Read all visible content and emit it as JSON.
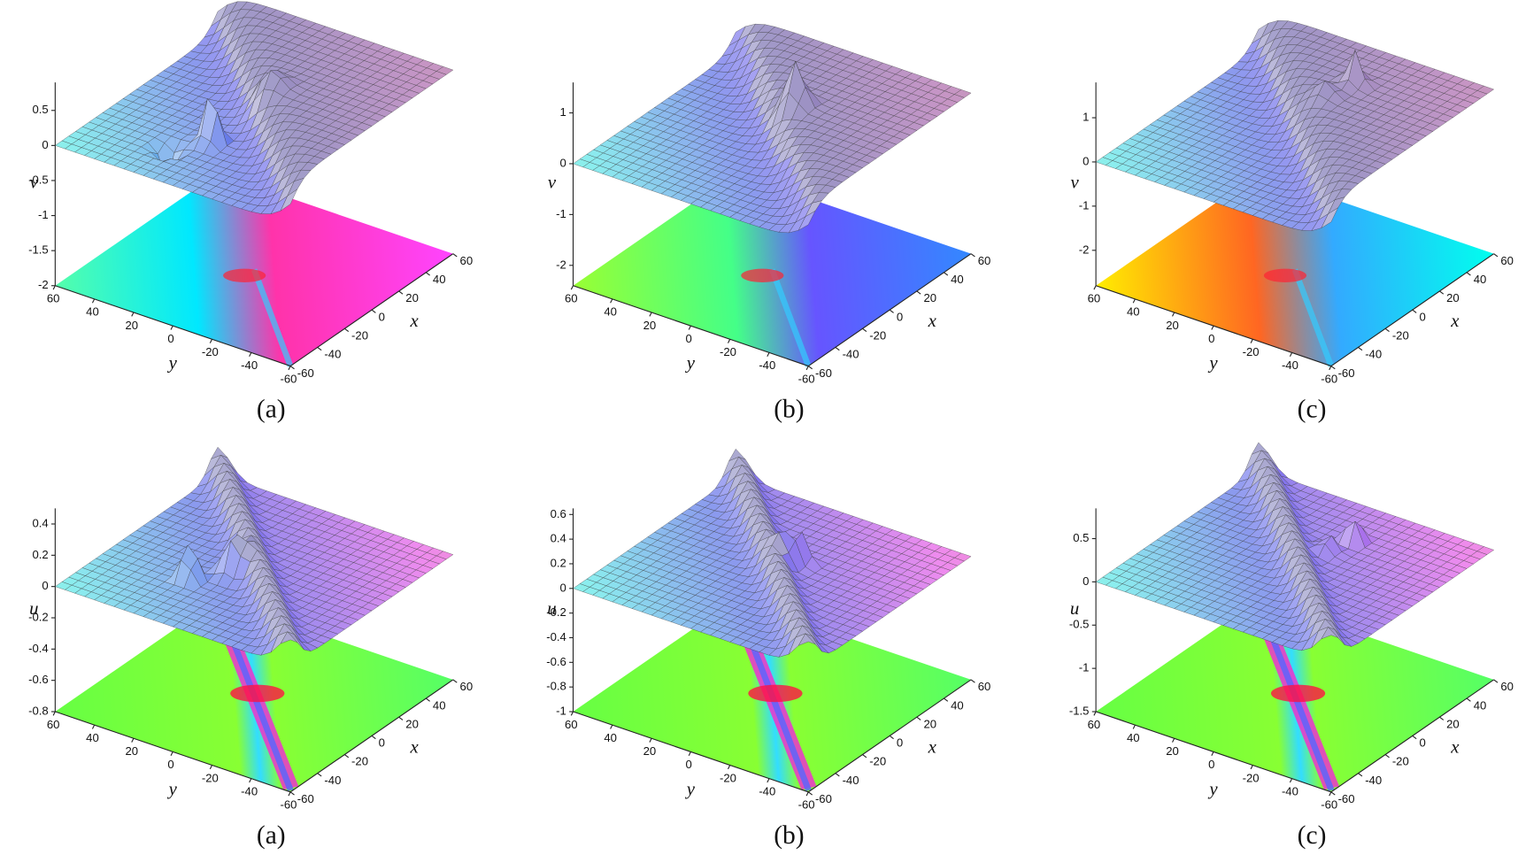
{
  "chart_data": [
    {
      "type": "surface",
      "caption": "(a)",
      "zlabel": "v",
      "xlabel": "x",
      "ylabel": "y",
      "xlim": [
        -60,
        60
      ],
      "ylim": [
        -60,
        60
      ],
      "zlim": [
        -2,
        0.9
      ],
      "xticks": [
        -60,
        -40,
        -20,
        0,
        20,
        40,
        60
      ],
      "yticks": [
        -60,
        -40,
        -20,
        0,
        20,
        40,
        60
      ],
      "zticks": [
        -2,
        -1.5,
        -1,
        -0.5,
        0,
        0.5
      ]
    },
    {
      "type": "surface",
      "caption": "(b)",
      "zlabel": "v",
      "xlabel": "x",
      "ylabel": "y",
      "xlim": [
        -60,
        60
      ],
      "ylim": [
        -60,
        60
      ],
      "zlim": [
        -2.4,
        1.6
      ],
      "xticks": [
        -60,
        -40,
        -20,
        0,
        20,
        40,
        60
      ],
      "yticks": [
        -60,
        -40,
        -20,
        0,
        20,
        40,
        60
      ],
      "zticks": [
        -2,
        -1,
        0,
        1
      ]
    },
    {
      "type": "surface",
      "caption": "(c)",
      "zlabel": "v",
      "xlabel": "x",
      "ylabel": "y",
      "xlim": [
        -60,
        60
      ],
      "ylim": [
        -60,
        60
      ],
      "zlim": [
        -2.8,
        1.8
      ],
      "xticks": [
        -60,
        -40,
        -20,
        0,
        20,
        40,
        60
      ],
      "yticks": [
        -60,
        -40,
        -20,
        0,
        20,
        40,
        60
      ],
      "zticks": [
        -2,
        -1,
        0,
        1
      ]
    },
    {
      "type": "surface",
      "caption": "(a)",
      "zlabel": "u",
      "xlabel": "x",
      "ylabel": "y",
      "xlim": [
        -60,
        60
      ],
      "ylim": [
        -60,
        60
      ],
      "zlim": [
        -0.8,
        0.5
      ],
      "xticks": [
        -60,
        -40,
        -20,
        0,
        20,
        40,
        60
      ],
      "yticks": [
        -60,
        -40,
        -20,
        0,
        20,
        40,
        60
      ],
      "zticks": [
        -0.8,
        -0.6,
        -0.4,
        -0.2,
        0,
        0.2,
        0.4
      ]
    },
    {
      "type": "surface",
      "caption": "(b)",
      "zlabel": "u",
      "xlabel": "x",
      "ylabel": "y",
      "xlim": [
        -60,
        60
      ],
      "ylim": [
        -60,
        60
      ],
      "zlim": [
        -1,
        0.65
      ],
      "xticks": [
        -60,
        -40,
        -20,
        0,
        20,
        40,
        60
      ],
      "yticks": [
        -60,
        -40,
        -20,
        0,
        20,
        40,
        60
      ],
      "zticks": [
        -1,
        -0.8,
        -0.6,
        -0.4,
        -0.2,
        0,
        0.2,
        0.4,
        0.6
      ]
    },
    {
      "type": "surface",
      "caption": "(c)",
      "zlabel": "u",
      "xlabel": "x",
      "ylabel": "y",
      "xlim": [
        -60,
        60
      ],
      "ylim": [
        -60,
        60
      ],
      "zlim": [
        -1.5,
        0.85
      ],
      "xticks": [
        -60,
        -40,
        -20,
        0,
        20,
        40,
        60
      ],
      "yticks": [
        -60,
        -40,
        -20,
        0,
        20,
        40,
        60
      ],
      "zticks": [
        -1.5,
        -1,
        -0.5,
        0,
        0.5
      ]
    }
  ]
}
